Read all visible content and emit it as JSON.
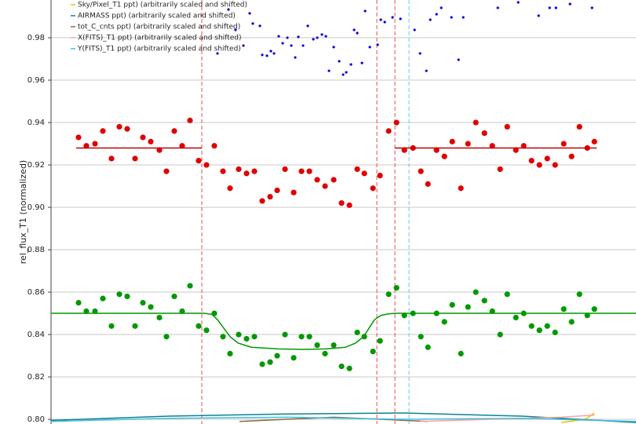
{
  "chart_data": {
    "type": "scatter",
    "ylabel": "rel_flux_T1 (normalized)",
    "xlim": [
      0,
      745
    ],
    "ylim": [
      0.7978,
      0.9978
    ],
    "yticks": [
      {
        "value": 0.8,
        "label": "0.80"
      },
      0.82,
      0.84,
      0.86,
      0.88,
      {
        "value": 0.9,
        "label": "0.90"
      },
      0.92,
      0.94,
      0.96,
      0.98
    ],
    "grid": true,
    "x": [
      35,
      45,
      56,
      66,
      77,
      87,
      97,
      107,
      117,
      127,
      138,
      147,
      157,
      167,
      177,
      188,
      198,
      208,
      219,
      228,
      239,
      249,
      259,
      269,
      279,
      288,
      298,
      309,
      319,
      329,
      339,
      349,
      360,
      370,
      380,
      390,
      399,
      410,
      419,
      430,
      440,
      450,
      461,
      471,
      480,
      491,
      501,
      511,
      522,
      531,
      541,
      552,
      562,
      572,
      581,
      592,
      602,
      612,
      622,
      632,
      642,
      653,
      663,
      673,
      683,
      692
    ],
    "vlines": [
      {
        "x": 192,
        "color": "#e05050"
      },
      {
        "x": 415,
        "color": "#e05050"
      },
      {
        "x": 438,
        "color": "#e05050"
      },
      {
        "x": 456,
        "color": "#60c8e8"
      }
    ],
    "series": [
      {
        "color": "#e00000",
        "mode": "markers",
        "values": [
          0.933,
          0.929,
          0.93,
          0.936,
          0.923,
          0.938,
          0.937,
          0.923,
          0.933,
          0.931,
          0.927,
          0.917,
          0.936,
          0.929,
          0.941,
          0.922,
          0.92,
          0.929,
          0.917,
          0.909,
          0.918,
          0.916,
          0.917,
          0.903,
          0.905,
          0.908,
          0.918,
          0.907,
          0.917,
          0.917,
          0.913,
          0.91,
          0.913,
          0.902,
          0.901,
          0.918,
          0.916,
          0.909,
          0.915,
          0.936,
          0.94,
          0.927,
          0.928,
          0.917,
          0.911,
          0.927,
          0.924,
          0.931,
          0.909,
          0.93,
          0.94,
          0.935,
          0.929,
          0.918,
          0.938,
          0.927,
          0.929,
          0.922,
          0.92,
          0.923,
          0.92,
          0.93,
          0.924,
          0.938,
          0.928,
          0.931
        ]
      },
      {
        "color": "#009900",
        "mode": "markers",
        "values": [
          0.855,
          0.851,
          0.851,
          0.857,
          0.844,
          0.859,
          0.858,
          0.844,
          0.855,
          0.853,
          0.848,
          0.839,
          0.858,
          0.851,
          0.863,
          0.844,
          0.842,
          0.85,
          0.839,
          0.831,
          0.84,
          0.838,
          0.839,
          0.826,
          0.827,
          0.83,
          0.84,
          0.829,
          0.839,
          0.839,
          0.835,
          0.831,
          0.835,
          0.825,
          0.824,
          0.841,
          0.839,
          0.832,
          0.837,
          0.859,
          0.862,
          0.849,
          0.85,
          0.839,
          0.834,
          0.85,
          0.846,
          0.854,
          0.831,
          0.853,
          0.86,
          0.856,
          0.851,
          0.84,
          0.859,
          0.848,
          0.85,
          0.844,
          0.842,
          0.844,
          0.841,
          0.852,
          0.846,
          0.859,
          0.849,
          0.852
        ]
      },
      {
        "color": "#0000dd",
        "mode": "small",
        "x": [
          212,
          226,
          235,
          245,
          253,
          257,
          266,
          269,
          275,
          280,
          284,
          290,
          295,
          301,
          306,
          311,
          315,
          321,
          327,
          334,
          339,
          345,
          350,
          354,
          360,
          367,
          372,
          376,
          382,
          386,
          390,
          396,
          400,
          406,
          416,
          420,
          425,
          435,
          445,
          463,
          470,
          478,
          483,
          491,
          497,
          510,
          519,
          525,
          569,
          595,
          621,
          635,
          643,
          661,
          689
        ],
        "values": [
          0.9726,
          0.9933,
          0.9837,
          0.9763,
          0.9915,
          0.9867,
          0.9856,
          0.9719,
          0.9715,
          0.9737,
          0.9726,
          0.9807,
          0.9774,
          0.98,
          0.9763,
          0.9707,
          0.9804,
          0.9763,
          0.9856,
          0.9793,
          0.98,
          0.9815,
          0.9807,
          0.9644,
          0.9756,
          0.9689,
          0.9626,
          0.9637,
          0.9674,
          0.9837,
          0.9822,
          0.9681,
          0.9926,
          0.9756,
          0.9767,
          0.9885,
          0.9874,
          0.9896,
          0.9889,
          0.9837,
          0.9726,
          0.9644,
          0.9885,
          0.9911,
          0.9941,
          0.9896,
          0.9696,
          0.9896,
          0.9941,
          0.9967,
          0.9904,
          0.9941,
          0.9941,
          0.9959,
          0.9941
        ]
      },
      {
        "color": "#c00000",
        "mode": "line",
        "x": [
          32,
          192,
          300,
          438,
          695
        ],
        "values": [
          0.928,
          0.928,
          null,
          0.928,
          0.928
        ]
      },
      {
        "color": "#009900",
        "mode": "line",
        "x": [
          0,
          195,
          205,
          212,
          220,
          228,
          238,
          255,
          290,
          320,
          350,
          375,
          388,
          398,
          405,
          412,
          420,
          430,
          440,
          745
        ],
        "values": [
          0.85,
          0.85,
          0.8495,
          0.847,
          0.843,
          0.839,
          0.836,
          0.834,
          0.8332,
          0.833,
          0.8332,
          0.834,
          0.836,
          0.839,
          0.843,
          0.847,
          0.849,
          0.8498,
          0.85,
          0.85
        ]
      },
      {
        "name": "Sky/Pixel_T1 ppt) (arbitrarily scaled and shifted)",
        "color": "#e8c000",
        "mode": "line",
        "x": [
          650,
          680,
          692
        ],
        "values": [
          0.7985,
          0.8,
          0.803
        ]
      },
      {
        "name": "AIRMASS ppt) (arbitrarily scaled and shifted)",
        "color": "#108090",
        "mode": "line",
        "x": [
          0,
          150,
          300,
          450,
          600,
          745
        ],
        "values": [
          0.7995,
          0.8015,
          0.8025,
          0.803,
          0.8015,
          0.7985
        ]
      },
      {
        "name": "tot_C_cnts ppt) (arbitrarily scaled and shifted)",
        "color": "#8b6a4b",
        "mode": "line",
        "x": [
          240,
          300,
          360,
          420,
          480
        ],
        "values": [
          0.799,
          0.8,
          0.801,
          0.8,
          0.799
        ]
      },
      {
        "name": "X(FITS)_T1 ppt) (arbitrarily scaled and shifted)",
        "color": "#ffa0a0",
        "mode": "line",
        "x": [
          470,
          560,
          650,
          692
        ],
        "values": [
          0.799,
          0.8,
          0.801,
          0.802
        ]
      },
      {
        "name": "Y(FITS)_T1 ppt) (arbitrarily scaled and shifted)",
        "color": "#40c0e0",
        "mode": "line",
        "x": [
          0,
          150,
          300,
          450,
          600,
          745
        ],
        "values": [
          0.799,
          0.8005,
          0.801,
          0.8,
          0.8005,
          0.799
        ]
      }
    ]
  }
}
